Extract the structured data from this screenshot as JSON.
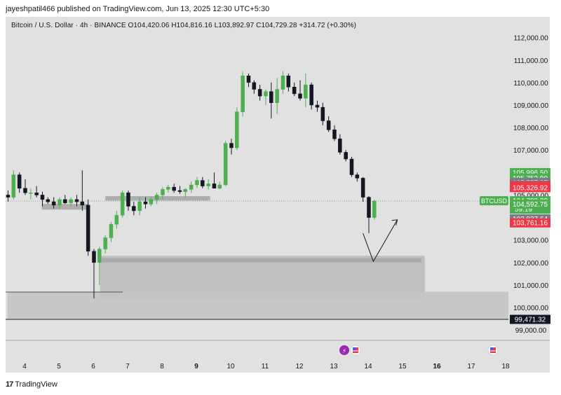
{
  "header": {
    "publish_line": "jayeshpatil466 published on TradingView.com, Jun 13, 2025 12:30 UTC+5:30",
    "legend": "Bitcoin / U.S. Dollar · 4h · BINANCE  O104,420.06  H104,816.16  L103,892.97  C104,729.28  +314.72 (+0.30%)"
  },
  "footer": {
    "brand": "TradingView"
  },
  "colors": {
    "up": "#4caf50",
    "down": "#131722",
    "background": "#e1e1e1",
    "price_line_green": "#4caf50",
    "badge_red": "#f23645",
    "badge_grey": "#787b86",
    "zone": "#bdbdbd"
  },
  "chart_data": {
    "type": "candlestick",
    "symbol_tag": "BTCUSD",
    "y_axis": {
      "ticks": [
        "99,000.00",
        "100,000.00",
        "101,000.00",
        "102,000.00",
        "103,000.00",
        "104,000.00",
        "105,000.00",
        "106,000.00",
        "107,000.00",
        "108,000.00",
        "109,000.00",
        "110,000.00",
        "111,000.00",
        "112,000.00"
      ],
      "tick_values": [
        99000,
        100000,
        101000,
        102000,
        103000,
        104000,
        105000,
        106000,
        107000,
        108000,
        109000,
        110000,
        111000,
        112000
      ],
      "range": [
        98600,
        112300
      ]
    },
    "x_axis": {
      "ticks": [
        "4",
        "5",
        "6",
        "7",
        "8",
        "9",
        "10",
        "11",
        "12",
        "13",
        "14",
        "15",
        "16",
        "17",
        "18"
      ],
      "range": [
        3.6,
        18.2
      ]
    },
    "price_labels": [
      {
        "text": "105,996.50",
        "value": 105996.5,
        "color": "green"
      },
      {
        "text": "105,752.90",
        "value": 105752.9,
        "color": "green"
      },
      {
        "text": "105,557.37",
        "value": 105557.37,
        "color": "grey"
      },
      {
        "text": "105,445.14",
        "value": 105445.14,
        "color": "grey"
      },
      {
        "text": "105,401.85",
        "value": 105401.85,
        "color": "red"
      },
      {
        "text": "105,326.92",
        "value": 105326.92,
        "color": "red"
      },
      {
        "text": "104,729.28",
        "value": 104729.28,
        "color": "green",
        "sub": "59:19",
        "current": true
      },
      {
        "text": "104,592.75",
        "value": 104592.75,
        "color": "green"
      },
      {
        "text": "103,937.64",
        "value": 103937.64,
        "color": "grey"
      },
      {
        "text": "103,761.16",
        "value": 103761.16,
        "color": "red"
      },
      {
        "text": "99,471.32",
        "value": 99471.32,
        "color": "black"
      }
    ],
    "candles": [
      [
        3.52,
        105000,
        105200,
        104700,
        104900
      ],
      [
        3.68,
        104900,
        106100,
        104800,
        105900
      ],
      [
        3.85,
        105900,
        106000,
        105100,
        105300
      ],
      [
        4.02,
        105300,
        105700,
        105000,
        105100
      ],
      [
        4.18,
        105100,
        105300,
        104800,
        105100
      ],
      [
        4.35,
        105100,
        105400,
        104900,
        105000
      ],
      [
        4.52,
        105000,
        105150,
        104500,
        104800
      ],
      [
        4.68,
        104800,
        104900,
        104600,
        104700
      ],
      [
        4.85,
        104700,
        104900,
        104400,
        104550
      ],
      [
        5.02,
        104550,
        104900,
        104400,
        104800
      ],
      [
        5.18,
        104800,
        105000,
        104600,
        104650
      ],
      [
        5.35,
        104650,
        104900,
        104500,
        104800
      ],
      [
        5.52,
        104800,
        105000,
        104500,
        104700
      ],
      [
        5.68,
        104700,
        106100,
        104300,
        104550
      ],
      [
        5.85,
        104550,
        104800,
        102300,
        102500
      ],
      [
        6.02,
        102500,
        102600,
        100400,
        102000
      ],
      [
        6.18,
        102000,
        102700,
        101000,
        102600
      ],
      [
        6.35,
        102600,
        103200,
        102400,
        103100
      ],
      [
        6.52,
        103100,
        103800,
        102900,
        103700
      ],
      [
        6.68,
        103700,
        104300,
        103500,
        104100
      ],
      [
        6.85,
        104100,
        105200,
        104000,
        105100
      ],
      [
        7.02,
        105100,
        105200,
        104300,
        104500
      ],
      [
        7.18,
        104500,
        104700,
        104100,
        104300
      ],
      [
        7.35,
        104300,
        104900,
        104100,
        104700
      ],
      [
        7.52,
        104700,
        104900,
        104400,
        104600
      ],
      [
        7.68,
        104600,
        104900,
        104500,
        104800
      ],
      [
        7.85,
        104800,
        105100,
        104600,
        105000
      ],
      [
        8.02,
        105000,
        105350,
        104800,
        105250
      ],
      [
        8.18,
        105250,
        105450,
        105100,
        105350
      ],
      [
        8.35,
        105350,
        105500,
        105100,
        105200
      ],
      [
        8.52,
        105200,
        105400,
        105050,
        105150
      ],
      [
        8.68,
        105150,
        105300,
        104900,
        105250
      ],
      [
        8.85,
        105250,
        105600,
        105100,
        105450
      ],
      [
        9.02,
        105450,
        105800,
        105300,
        105650
      ],
      [
        9.18,
        105650,
        105800,
        105300,
        105400
      ],
      [
        9.35,
        105400,
        105700,
        105250,
        105500
      ],
      [
        9.52,
        105500,
        106000,
        105400,
        105300
      ],
      [
        9.68,
        105300,
        105600,
        105250,
        105450
      ],
      [
        9.85,
        105450,
        107400,
        105400,
        107300
      ],
      [
        10.02,
        107300,
        107500,
        106800,
        107100
      ],
      [
        10.18,
        107100,
        108900,
        107000,
        108700
      ],
      [
        10.35,
        108700,
        110500,
        108500,
        110300
      ],
      [
        10.52,
        110300,
        110400,
        109800,
        110000
      ],
      [
        10.68,
        110000,
        110100,
        109500,
        109700
      ],
      [
        10.85,
        109700,
        109900,
        109200,
        109400
      ],
      [
        11.02,
        109400,
        109700,
        109000,
        109600
      ],
      [
        11.18,
        109600,
        110000,
        108400,
        109100
      ],
      [
        11.35,
        109100,
        110200,
        108600,
        109700
      ],
      [
        11.52,
        109700,
        110500,
        109500,
        110300
      ],
      [
        11.68,
        110300,
        110400,
        109600,
        109800
      ],
      [
        11.85,
        109800,
        110000,
        109400,
        109500
      ],
      [
        12.02,
        109500,
        110100,
        109200,
        109300
      ],
      [
        12.18,
        109300,
        110400,
        108900,
        109900
      ],
      [
        12.35,
        109900,
        110000,
        108800,
        109000
      ],
      [
        12.52,
        109000,
        109200,
        108700,
        108900
      ],
      [
        12.68,
        108900,
        109100,
        108100,
        108300
      ],
      [
        12.85,
        108300,
        108500,
        107800,
        107900
      ],
      [
        13.02,
        107900,
        108100,
        107400,
        107500
      ],
      [
        13.18,
        107500,
        107700,
        106800,
        106900
      ],
      [
        13.35,
        106900,
        107000,
        106500,
        106600
      ],
      [
        13.52,
        106600,
        106700,
        105800,
        105900
      ],
      [
        13.68,
        105900,
        106000,
        105600,
        105750
      ],
      [
        13.85,
        105750,
        105800,
        104700,
        104900
      ],
      [
        14.02,
        104900,
        104950,
        103300,
        104000
      ],
      [
        14.18,
        104000,
        104800,
        103900,
        104730
      ]
    ],
    "zones": [
      {
        "x": [
          4.5,
          5.85
        ],
        "y": [
          104350,
          104600
        ],
        "color": "#a9a9a9"
      },
      {
        "x": [
          6.35,
          9.4
        ],
        "y": [
          104750,
          104950
        ],
        "color": "#a9a9a9"
      },
      {
        "x": [
          6.2,
          15.65
        ],
        "y": [
          100400,
          102300
        ],
        "color": "#bdbdbd"
      },
      {
        "x": [
          6.2,
          15.55
        ],
        "y": [
          102000,
          102200
        ],
        "color": "#a9a9a9"
      },
      {
        "x": [
          3.5,
          18.2
        ],
        "y": [
          99500,
          100700
        ],
        "color": "#c4c4c4"
      }
    ],
    "projection_arrow": [
      [
        13.85,
        103300
      ],
      [
        14.15,
        102050
      ],
      [
        14.85,
        103900
      ]
    ]
  }
}
